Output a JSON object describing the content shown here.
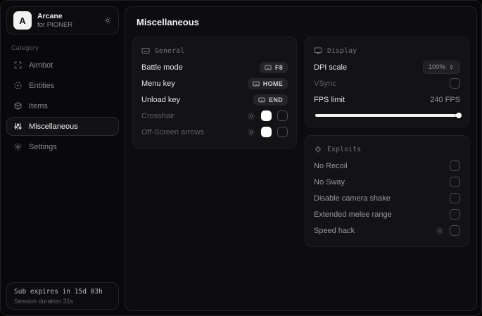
{
  "brand": {
    "logo_letter": "A",
    "name": "Arcane",
    "subtitle": "for PIONER"
  },
  "sidebar": {
    "category_label": "Category",
    "items": [
      {
        "label": "Aimbot",
        "icon": "crosshair-scan-icon",
        "selected": false
      },
      {
        "label": "Entities",
        "icon": "radar-icon",
        "selected": false
      },
      {
        "label": "Items",
        "icon": "cube-icon",
        "selected": false
      },
      {
        "label": "Miscellaneous",
        "icon": "sliders-icon",
        "selected": true
      },
      {
        "label": "Settings",
        "icon": "gear-icon",
        "selected": false
      }
    ]
  },
  "status": {
    "line1": "Sub expires in 15d 03h",
    "line2": "Session duration 31s"
  },
  "main": {
    "title": "Miscellaneous",
    "panels": {
      "general": {
        "header": "General",
        "rows": [
          {
            "label": "Battle mode",
            "type": "keybind",
            "key": "F8"
          },
          {
            "label": "Menu key",
            "type": "keybind",
            "key": "HOME"
          },
          {
            "label": "Unload key",
            "type": "keybind",
            "key": "END"
          },
          {
            "label": "Crosshair",
            "type": "color-toggle",
            "color": "#ffffff",
            "checked": false
          },
          {
            "label": "Off-Screen arrows",
            "type": "color-toggle",
            "color": "#ffffff",
            "checked": false
          }
        ]
      },
      "display": {
        "header": "Display",
        "dpi_label": "DPI scale",
        "dpi_value": "100%",
        "vsync_label": "VSync",
        "vsync_checked": false,
        "fps_label": "FPS limit",
        "fps_value": "240 FPS",
        "fps_percent": 100
      },
      "exploits": {
        "header": "Exploits",
        "rows": [
          {
            "label": "No Recoil",
            "checked": false
          },
          {
            "label": "No Sway",
            "checked": false
          },
          {
            "label": "Disable camera shake",
            "checked": false
          },
          {
            "label": "Extended melee range",
            "checked": false
          },
          {
            "label": "Speed hack",
            "checked": false,
            "has_settings": true
          }
        ]
      }
    }
  },
  "colors": {
    "background": "#09090b",
    "panel": "#131315",
    "border": "#202024",
    "accent_white": "#ffffff",
    "text_primary": "#f0f0f2",
    "text_muted": "#87878e"
  }
}
